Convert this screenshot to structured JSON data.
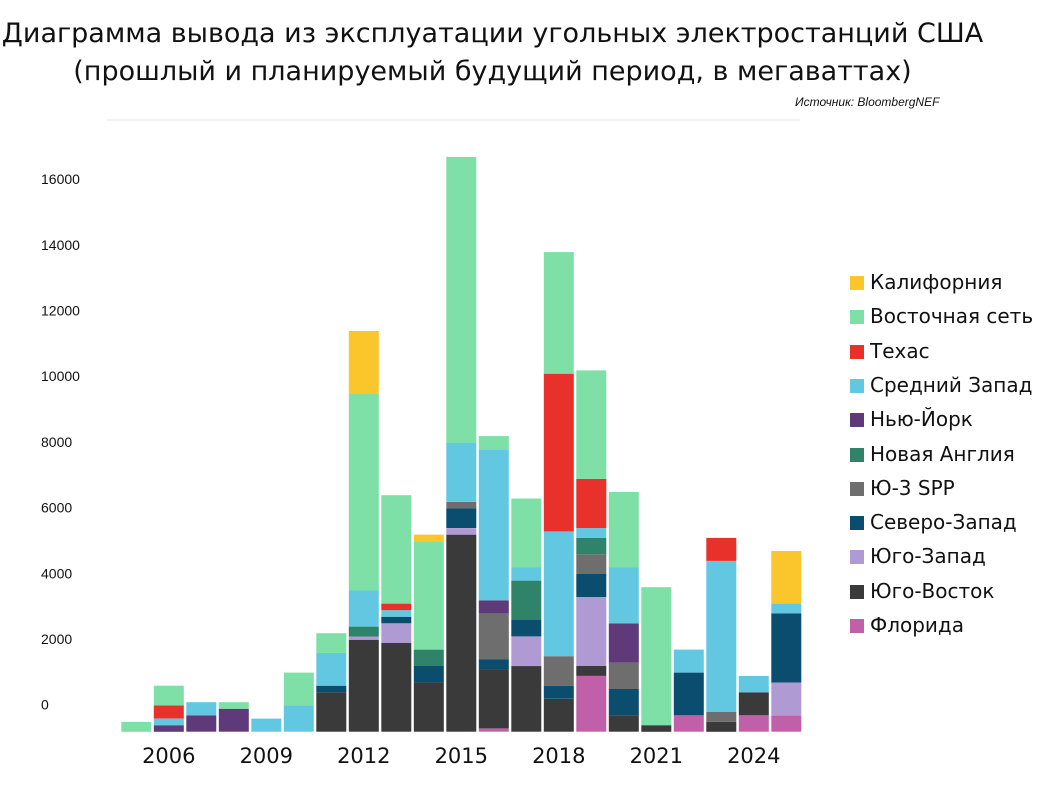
{
  "chart_data": {
    "type": "bar",
    "stacked": true,
    "title": "Диаграмма вывода из эксплуатации угольных электростанций США",
    "subtitle": "(прошлый и планируемый будущий период, в мегаваттах)",
    "source": "Источник: BloombergNEF",
    "xlabel": "",
    "ylabel": "",
    "ylim": [
      -800,
      17800
    ],
    "y_ticks": [
      {
        "value": 0,
        "label": "0"
      },
      {
        "value": 2000,
        "label": "2000"
      },
      {
        "value": 4000,
        "label": "4000"
      },
      {
        "value": 6000,
        "label": "6000"
      },
      {
        "value": 8000,
        "label": "8000"
      },
      {
        "value": 10000,
        "label": "10000"
      },
      {
        "value": 12000,
        "label": "12000"
      },
      {
        "value": 14000,
        "label": "14000"
      },
      {
        "value": 16000,
        "label": "16000"
      }
    ],
    "x_tick_labels": [
      "2006",
      "2009",
      "2012",
      "2015",
      "2018",
      "2021",
      "2024"
    ],
    "categories": [
      "2005",
      "2006",
      "2007",
      "2008",
      "2009",
      "2010",
      "2011",
      "2012",
      "2013",
      "2014",
      "2015",
      "2016",
      "2017",
      "2018",
      "2019",
      "2020",
      "2021",
      "2022",
      "2023",
      "2024",
      "2025"
    ],
    "legend_position": "right",
    "grid": false,
    "series": [
      {
        "name": "Флорида",
        "color": "#c060a8",
        "values": [
          0,
          0,
          0,
          0,
          0,
          0,
          0,
          0,
          0,
          0,
          0,
          100,
          0,
          0,
          1700,
          0,
          0,
          500,
          0,
          500,
          500
        ]
      },
      {
        "name": "Юго-Восток",
        "color": "#3a3a3a",
        "values": [
          0,
          0,
          0,
          0,
          0,
          0,
          1200,
          2800,
          2700,
          1500,
          6000,
          1800,
          2000,
          1000,
          300,
          500,
          200,
          0,
          300,
          700,
          0
        ]
      },
      {
        "name": "Юго-Запад",
        "color": "#b09ad4",
        "values": [
          0,
          0,
          0,
          0,
          0,
          0,
          0,
          100,
          600,
          0,
          200,
          0,
          900,
          0,
          2100,
          0,
          0,
          0,
          0,
          0,
          1000
        ]
      },
      {
        "name": "Северо-Запад",
        "color": "#0b4d6e",
        "values": [
          0,
          0,
          0,
          0,
          0,
          0,
          200,
          0,
          200,
          500,
          600,
          300,
          500,
          400,
          700,
          800,
          0,
          1300,
          0,
          0,
          2100
        ]
      },
      {
        "name": "Ю-3 SPP",
        "color": "#6e6e6e",
        "values": [
          0,
          0,
          0,
          0,
          0,
          0,
          0,
          0,
          0,
          0,
          200,
          1400,
          0,
          900,
          600,
          800,
          0,
          0,
          300,
          0,
          0
        ]
      },
      {
        "name": "Новая Англия",
        "color": "#2f8368",
        "values": [
          0,
          0,
          0,
          0,
          0,
          0,
          0,
          300,
          0,
          500,
          0,
          0,
          1200,
          0,
          500,
          0,
          0,
          0,
          0,
          0,
          0
        ]
      },
      {
        "name": "Нью-Йорк",
        "color": "#5e3a7a",
        "values": [
          0,
          200,
          500,
          700,
          0,
          0,
          0,
          0,
          0,
          0,
          0,
          400,
          0,
          0,
          0,
          1200,
          0,
          0,
          0,
          0,
          0
        ]
      },
      {
        "name": "Средний Запад",
        "color": "#62c8e2",
        "values": [
          0,
          200,
          400,
          0,
          400,
          800,
          1000,
          1100,
          200,
          0,
          1800,
          4600,
          400,
          3800,
          300,
          1700,
          0,
          700,
          4600,
          500,
          300
        ]
      },
      {
        "name": "Техас",
        "color": "#e8312a",
        "values": [
          0,
          400,
          0,
          0,
          0,
          0,
          0,
          0,
          200,
          0,
          0,
          0,
          0,
          4800,
          1500,
          0,
          0,
          0,
          700,
          0,
          0
        ]
      },
      {
        "name": "Восточная сеть",
        "color": "#7ee0a6",
        "values": [
          300,
          600,
          0,
          200,
          0,
          1000,
          600,
          6000,
          3300,
          3300,
          8700,
          400,
          2100,
          3700,
          3300,
          2300,
          4200,
          0,
          0,
          0,
          0
        ]
      },
      {
        "name": "Калифорния",
        "color": "#fbc52c",
        "values": [
          0,
          0,
          0,
          0,
          0,
          0,
          0,
          1900,
          0,
          200,
          0,
          0,
          0,
          0,
          0,
          0,
          0,
          0,
          0,
          0,
          1600
        ]
      }
    ]
  },
  "legend_order": [
    "Калифорния",
    "Восточная сеть",
    "Техас",
    "Средний Запад",
    "Нью-Йорк",
    "Новая Англия",
    "Ю-3 SPP",
    "Северо-Запад",
    "Юго-Запад",
    "Юго-Восток",
    "Флорида"
  ]
}
